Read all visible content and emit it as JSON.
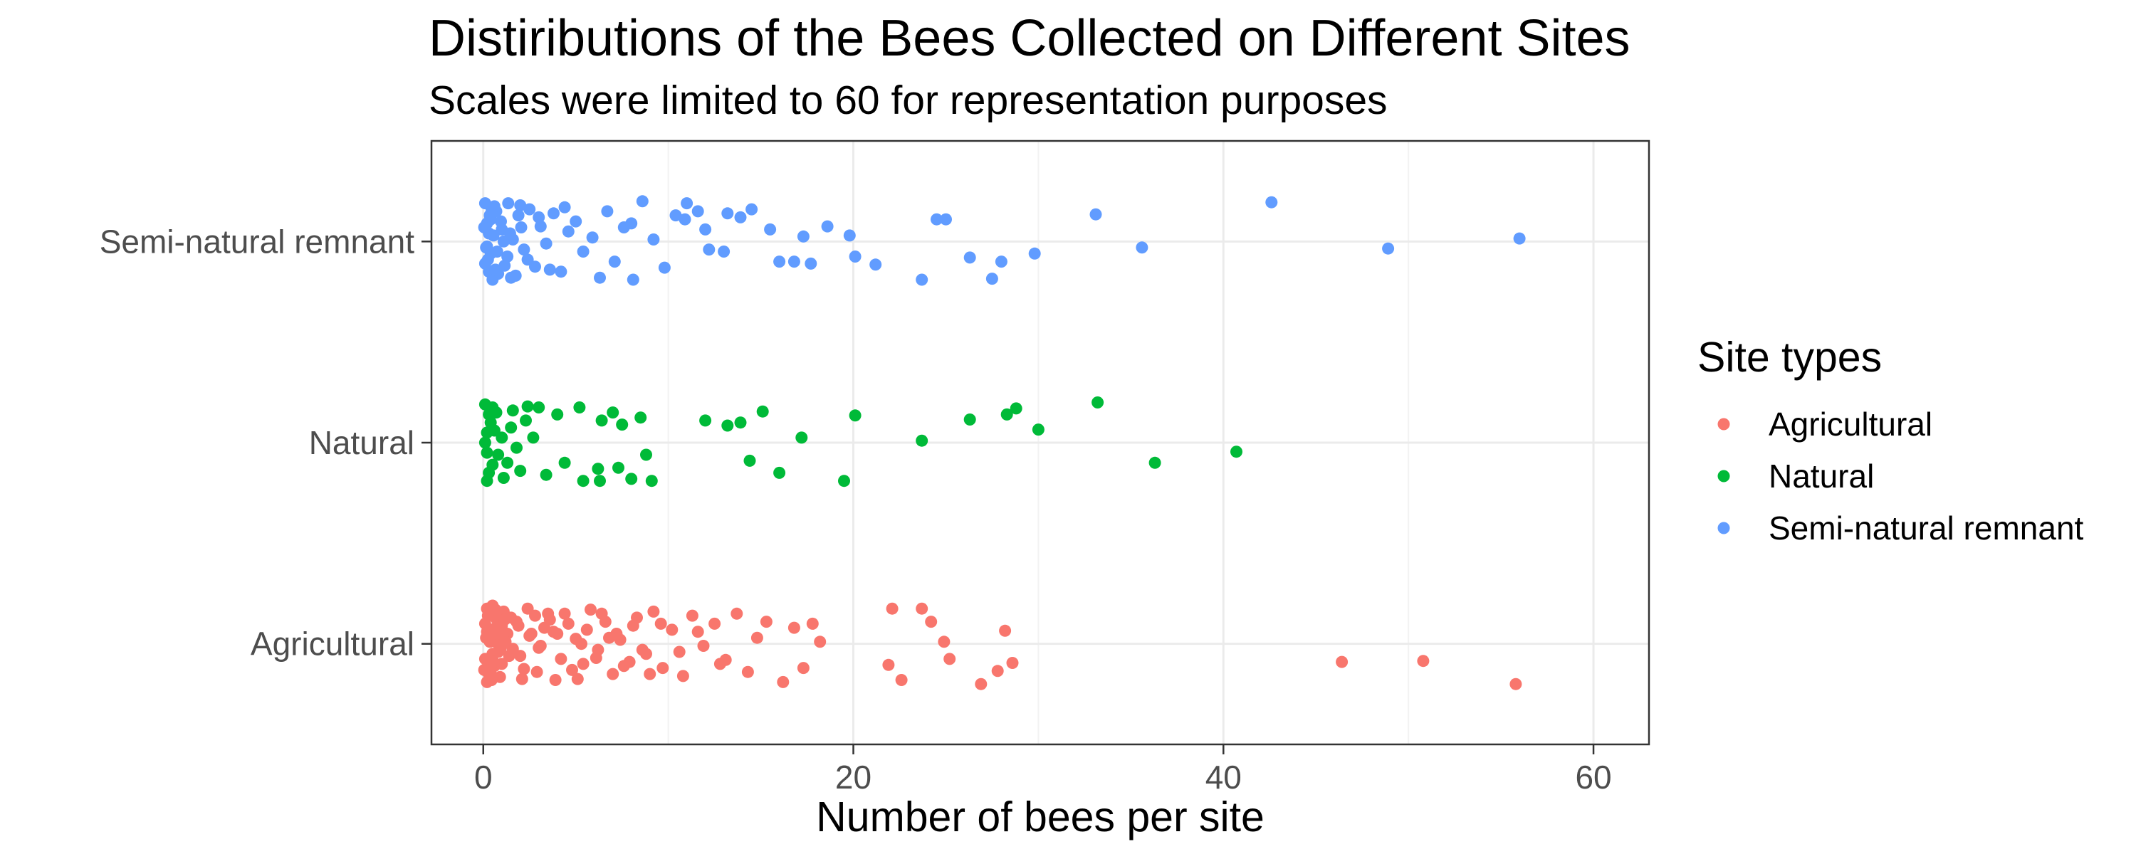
{
  "chart_data": {
    "type": "scatter",
    "title": "Distiributions of the Bees Collected on Different Sites",
    "subtitle": "Scales were limited to 60 for representation purposes",
    "xlabel": "Number of bees per site",
    "ylabel": "",
    "xlim": [
      -2.8,
      63
    ],
    "x_ticks": [
      0,
      20,
      40,
      60
    ],
    "x_tick_labels": [
      "0",
      "20",
      "40",
      "60"
    ],
    "categories": [
      "Agricultural",
      "Natural",
      "Semi-natural remnant"
    ],
    "grid": true,
    "legend": {
      "title": "Site types",
      "position": "right",
      "entries": [
        "Agricultural",
        "Natural",
        "Semi-natural remnant"
      ]
    },
    "colors": {
      "Agricultural": "#F8766D",
      "Natural": "#00BA38",
      "Semi-natural remnant": "#619CFF"
    },
    "series": [
      {
        "name": "Agricultural",
        "points": [
          [
            0.2,
            0.35
          ],
          [
            0.5,
            -0.1
          ],
          [
            0.1,
            0.2
          ],
          [
            0.8,
            0.0
          ],
          [
            0.3,
            -0.3
          ],
          [
            0.6,
            0.15
          ],
          [
            1.0,
            -0.2
          ],
          [
            0.4,
            0.3
          ],
          [
            1.3,
            0.1
          ],
          [
            0.2,
            -0.38
          ],
          [
            0.7,
            0.25
          ],
          [
            1.6,
            -0.05
          ],
          [
            0.1,
            -0.15
          ],
          [
            1.1,
            0.32
          ],
          [
            0.9,
            -0.33
          ],
          [
            1.9,
            0.18
          ],
          [
            0.3,
            0.05
          ],
          [
            2.2,
            -0.25
          ],
          [
            0.5,
            0.38
          ],
          [
            2.5,
            0.08
          ],
          [
            1.4,
            -0.12
          ],
          [
            0.2,
            0.12
          ],
          [
            2.8,
            0.28
          ],
          [
            0.6,
            -0.22
          ],
          [
            3.1,
            -0.02
          ],
          [
            1.8,
            0.22
          ],
          [
            0.4,
            -0.3
          ],
          [
            3.5,
            0.3
          ],
          [
            2.1,
            -0.35
          ],
          [
            1.2,
            0.02
          ],
          [
            3.8,
            0.12
          ],
          [
            4.2,
            -0.15
          ],
          [
            2.4,
            0.35
          ],
          [
            0.8,
            -0.08
          ],
          [
            4.6,
            0.2
          ],
          [
            2.9,
            -0.28
          ],
          [
            5.0,
            0.05
          ],
          [
            1.5,
            0.26
          ],
          [
            5.4,
            -0.2
          ],
          [
            3.3,
            0.16
          ],
          [
            5.8,
            0.34
          ],
          [
            0.3,
            -0.25
          ],
          [
            6.2,
            -0.06
          ],
          [
            4.0,
            0.1
          ],
          [
            6.6,
            0.22
          ],
          [
            2.0,
            -0.12
          ],
          [
            7.0,
            -0.3
          ],
          [
            4.4,
            0.3
          ],
          [
            7.4,
            0.04
          ],
          [
            1.0,
            0.18
          ],
          [
            7.9,
            -0.18
          ],
          [
            5.1,
            -0.35
          ],
          [
            8.3,
            0.26
          ],
          [
            3.0,
            -0.04
          ],
          [
            8.8,
            -0.1
          ],
          [
            5.6,
            0.14
          ],
          [
            9.2,
            0.32
          ],
          [
            2.6,
            0.1
          ],
          [
            9.7,
            -0.24
          ],
          [
            6.1,
            -0.14
          ],
          [
            10.2,
            0.14
          ],
          [
            3.6,
            0.24
          ],
          [
            10.8,
            -0.32
          ],
          [
            6.8,
            0.06
          ],
          [
            11.3,
            0.28
          ],
          [
            4.8,
            -0.26
          ],
          [
            11.9,
            -0.02
          ],
          [
            7.6,
            -0.22
          ],
          [
            12.5,
            0.2
          ],
          [
            3.9,
            -0.36
          ],
          [
            13.1,
            -0.16
          ],
          [
            8.1,
            0.18
          ],
          [
            13.7,
            0.3
          ],
          [
            5.3,
            0.0
          ],
          [
            14.3,
            -0.28
          ],
          [
            8.6,
            -0.06
          ],
          [
            14.8,
            0.06
          ],
          [
            6.4,
            0.3
          ],
          [
            15.3,
            0.22
          ],
          [
            9.0,
            -0.3
          ],
          [
            16.2,
            -0.38
          ],
          [
            7.2,
            0.1
          ],
          [
            16.8,
            0.16
          ],
          [
            9.6,
            0.2
          ],
          [
            17.3,
            -0.24
          ],
          [
            10.6,
            -0.08
          ],
          [
            17.8,
            0.2
          ],
          [
            11.6,
            0.12
          ],
          [
            18.2,
            0.02
          ],
          [
            12.8,
            -0.2
          ],
          [
            0.15,
            0.06
          ],
          [
            0.45,
            -0.36
          ],
          [
            0.25,
            0.28
          ],
          [
            0.55,
            -0.18
          ],
          [
            0.35,
            0.02
          ],
          [
            0.65,
            0.34
          ],
          [
            0.05,
            -0.26
          ],
          [
            0.75,
            0.1
          ],
          [
            0.95,
            -0.04
          ],
          [
            1.15,
            0.24
          ],
          [
            22.1,
            0.35
          ],
          [
            23.7,
            0.35
          ],
          [
            24.2,
            0.22
          ],
          [
            22.6,
            -0.36
          ],
          [
            21.9,
            -0.21
          ],
          [
            24.9,
            0.02
          ],
          [
            25.2,
            -0.15
          ],
          [
            27.8,
            -0.27
          ],
          [
            28.2,
            0.13
          ],
          [
            28.6,
            -0.19
          ],
          [
            26.9,
            -0.4
          ],
          [
            46.4,
            -0.18
          ],
          [
            50.8,
            -0.17
          ],
          [
            55.8,
            -0.4
          ]
        ]
      },
      {
        "name": "Natural",
        "points": [
          [
            0.1,
            0.38
          ],
          [
            0.4,
            0.2
          ],
          [
            0.2,
            -0.1
          ],
          [
            0.7,
            0.3
          ],
          [
            0.3,
            -0.3
          ],
          [
            1.0,
            0.05
          ],
          [
            0.5,
            0.35
          ],
          [
            0.2,
            -0.38
          ],
          [
            1.3,
            -0.2
          ],
          [
            0.6,
            0.12
          ],
          [
            1.6,
            0.32
          ],
          [
            0.1,
            0.0
          ],
          [
            2.0,
            -0.28
          ],
          [
            0.8,
            -0.12
          ],
          [
            2.3,
            0.22
          ],
          [
            0.3,
            0.28
          ],
          [
            1.1,
            -0.35
          ],
          [
            2.7,
            0.05
          ],
          [
            0.5,
            -0.22
          ],
          [
            1.5,
            0.15
          ],
          [
            3.0,
            0.35
          ],
          [
            3.4,
            -0.32
          ],
          [
            0.2,
            0.1
          ],
          [
            4.0,
            0.28
          ],
          [
            4.4,
            -0.2
          ],
          [
            1.8,
            -0.05
          ],
          [
            5.2,
            0.35
          ],
          [
            5.4,
            -0.38
          ],
          [
            2.4,
            0.36
          ],
          [
            6.2,
            -0.26
          ],
          [
            6.4,
            0.22
          ],
          [
            7.0,
            0.3
          ],
          [
            6.3,
            -0.38
          ],
          [
            7.5,
            0.18
          ],
          [
            8.0,
            -0.36
          ],
          [
            8.5,
            0.25
          ],
          [
            7.3,
            -0.25
          ],
          [
            8.8,
            -0.12
          ],
          [
            9.1,
            -0.38
          ],
          [
            12.0,
            0.22
          ],
          [
            13.2,
            0.17
          ],
          [
            13.9,
            0.2
          ],
          [
            15.1,
            0.31
          ],
          [
            14.4,
            -0.18
          ],
          [
            17.2,
            0.05
          ],
          [
            16.0,
            -0.3
          ],
          [
            19.5,
            -0.38
          ],
          [
            20.1,
            0.27
          ],
          [
            23.7,
            0.02
          ],
          [
            26.3,
            0.23
          ],
          [
            28.3,
            0.28
          ],
          [
            28.8,
            0.34
          ],
          [
            30.0,
            0.13
          ],
          [
            33.2,
            0.4
          ],
          [
            36.3,
            -0.2
          ],
          [
            40.7,
            -0.09
          ]
        ]
      },
      {
        "name": "Semi-natural remnant",
        "points": [
          [
            0.1,
            0.38
          ],
          [
            0.4,
            0.22
          ],
          [
            0.2,
            -0.05
          ],
          [
            0.7,
            0.3
          ],
          [
            0.3,
            -0.3
          ],
          [
            1.0,
            0.12
          ],
          [
            0.5,
            -0.38
          ],
          [
            0.2,
            0.18
          ],
          [
            1.3,
            -0.15
          ],
          [
            0.6,
            0.35
          ],
          [
            1.6,
            0.02
          ],
          [
            0.1,
            -0.22
          ],
          [
            1.9,
            0.26
          ],
          [
            0.8,
            -0.32
          ],
          [
            2.2,
            -0.08
          ],
          [
            0.3,
            0.08
          ],
          [
            2.5,
            0.32
          ],
          [
            1.1,
            0.0
          ],
          [
            2.8,
            -0.25
          ],
          [
            0.4,
            -0.12
          ],
          [
            3.1,
            0.15
          ],
          [
            1.5,
            -0.36
          ],
          [
            3.4,
            -0.02
          ],
          [
            3.8,
            0.28
          ],
          [
            2.0,
            0.36
          ],
          [
            4.2,
            -0.3
          ],
          [
            4.6,
            0.1
          ],
          [
            2.4,
            -0.18
          ],
          [
            5.0,
            0.2
          ],
          [
            5.4,
            -0.1
          ],
          [
            3.0,
            0.24
          ],
          [
            5.9,
            0.04
          ],
          [
            6.3,
            -0.36
          ],
          [
            3.6,
            -0.28
          ],
          [
            6.7,
            0.3
          ],
          [
            7.1,
            -0.2
          ],
          [
            4.4,
            0.34
          ],
          [
            7.6,
            0.14
          ],
          [
            8.1,
            -0.38
          ],
          [
            8.6,
            0.4
          ],
          [
            9.2,
            0.02
          ],
          [
            9.8,
            -0.26
          ],
          [
            10.4,
            0.26
          ],
          [
            10.9,
            0.22
          ],
          [
            11.6,
            0.3
          ],
          [
            12.2,
            -0.08
          ],
          [
            13.2,
            0.28
          ],
          [
            13.9,
            0.24
          ],
          [
            14.5,
            0.32
          ],
          [
            15.5,
            0.12
          ],
          [
            16.0,
            -0.2
          ],
          [
            17.3,
            0.05
          ],
          [
            17.7,
            -0.22
          ],
          [
            18.6,
            0.15
          ],
          [
            19.8,
            0.06
          ],
          [
            21.2,
            -0.23
          ],
          [
            23.7,
            -0.38
          ],
          [
            24.5,
            0.22
          ],
          [
            26.3,
            -0.16
          ],
          [
            27.5,
            -0.37
          ],
          [
            29.8,
            -0.12
          ],
          [
            33.1,
            0.27
          ],
          [
            35.6,
            -0.06
          ],
          [
            42.6,
            0.39
          ],
          [
            48.9,
            -0.07
          ],
          [
            56.0,
            0.03
          ],
          [
            0.15,
            -0.06
          ],
          [
            0.45,
            0.32
          ],
          [
            0.25,
            -0.18
          ],
          [
            0.55,
            0.06
          ],
          [
            0.35,
            0.26
          ],
          [
            0.65,
            -0.28
          ],
          [
            0.05,
            0.14
          ],
          [
            0.75,
            -0.1
          ],
          [
            0.95,
            0.2
          ],
          [
            1.15,
            -0.24
          ],
          [
            1.35,
            0.38
          ],
          [
            1.45,
            0.08
          ],
          [
            1.75,
            -0.34
          ],
          [
            2.05,
            0.14
          ],
          [
            8.0,
            0.18
          ],
          [
            11.0,
            0.38
          ],
          [
            13.0,
            -0.1
          ],
          [
            12.0,
            0.12
          ],
          [
            16.8,
            -0.2
          ],
          [
            20.1,
            -0.15
          ],
          [
            25.0,
            0.22
          ],
          [
            28.0,
            -0.2
          ]
        ]
      }
    ]
  }
}
